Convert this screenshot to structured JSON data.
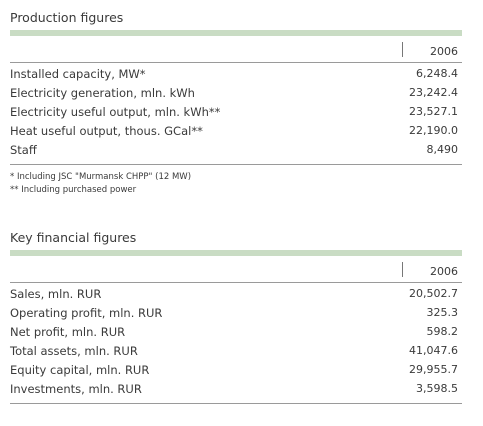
{
  "sections": [
    {
      "title": "Production figures",
      "year": "2006",
      "rows": [
        {
          "label": "Installed capacity, MW*",
          "value": "6,248.4"
        },
        {
          "label": "Electricity generation, mln. kWh",
          "value": "23,242.4"
        },
        {
          "label": "Electricity useful output, mln. kWh**",
          "value": "23,527.1"
        },
        {
          "label": "Heat useful output, thous. GCal**",
          "value": "22,190.0"
        },
        {
          "label": "Staff",
          "value": "8,490"
        }
      ],
      "footnotes": [
        "* Including JSC \"Murmansk CHPP\" (12 MW)",
        "** Including purchased power"
      ]
    },
    {
      "title": "Key financial figures",
      "year": "2006",
      "rows": [
        {
          "label": "Sales, mln. RUR",
          "value": "20,502.7"
        },
        {
          "label": "Operating profit, mln. RUR",
          "value": "325.3"
        },
        {
          "label": "Net profit, mln. RUR",
          "value": "598.2"
        },
        {
          "label": "Total assets, mln. RUR",
          "value": "41,047.6"
        },
        {
          "label": "Equity capital, mln. RUR",
          "value": "29,955.7"
        },
        {
          "label": "Investments, mln. RUR",
          "value": "3,598.5"
        }
      ]
    }
  ]
}
